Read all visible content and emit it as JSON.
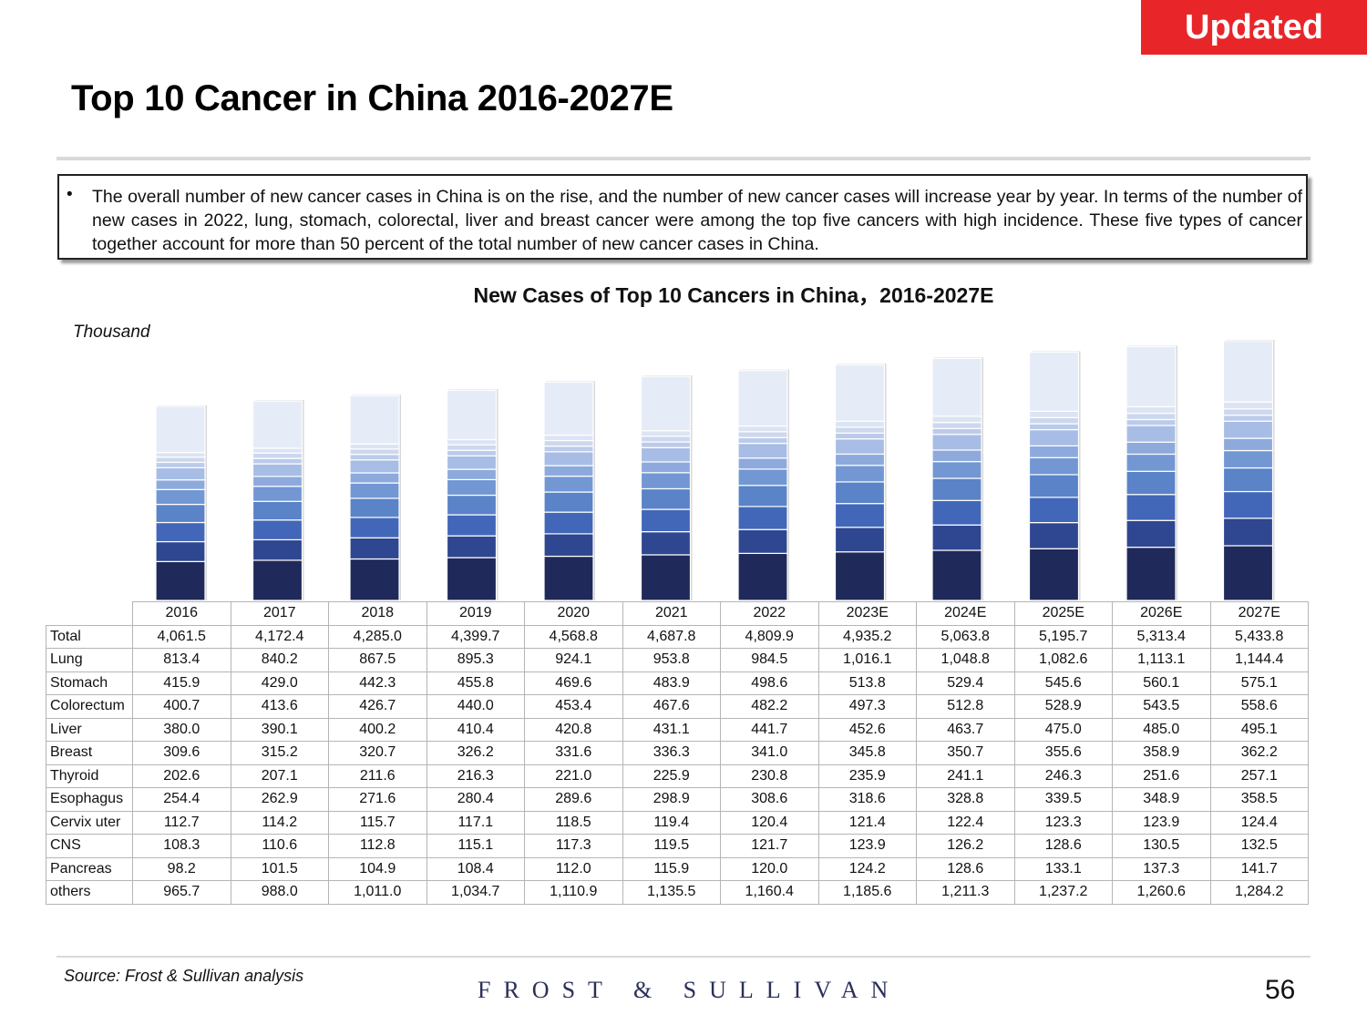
{
  "badge": "Updated",
  "title": "Top 10 Cancer in China 2016-2027E",
  "summary": "The overall number of new cancer cases in China is on the rise, and the number of new cancer cases will increase year by year. In terms of the number of new cases in 2022, lung, stomach, colorectal, liver and breast cancer were among the top five cancers with high incidence. These five types of cancer together account for more than 50 percent of the total number of new cancer cases in China.",
  "bullet": "•",
  "source": "Source: Frost & Sullivan analysis",
  "logo": "FROST & SULLIVAN",
  "page_number": "56",
  "colors": {
    "badge": "#e8262a",
    "series": [
      "#1f2a5a",
      "#2f4690",
      "#4267b8",
      "#5a83c8",
      "#7297d3",
      "#8eaadc",
      "#a8bde5",
      "#bccbea",
      "#cdd8ef",
      "#dce4f4",
      "#e6ecf7"
    ]
  },
  "chart_data": {
    "type": "bar",
    "stacked": true,
    "title": "New Cases of Top 10 Cancers in China，2016-2027E",
    "ylabel": "Thousand",
    "categories": [
      "2016",
      "2017",
      "2018",
      "2019",
      "2020",
      "2021",
      "2022",
      "2023E",
      "2024E",
      "2025E",
      "2026E",
      "2027E"
    ],
    "totals": [
      "4,061.5",
      "4,172.4",
      "4,285.0",
      "4,399.7",
      "4,568.8",
      "4,687.8",
      "4,809.9",
      "4,935.2",
      "5,063.8",
      "5,195.7",
      "5,313.4",
      "5,433.8"
    ],
    "series": [
      {
        "name": "Lung",
        "values": [
          "813.4",
          "840.2",
          "867.5",
          "895.3",
          "924.1",
          "953.8",
          "984.5",
          "1,016.1",
          "1,048.8",
          "1,082.6",
          "1,113.1",
          "1,144.4"
        ]
      },
      {
        "name": "Stomach",
        "values": [
          "415.9",
          "429.0",
          "442.3",
          "455.8",
          "469.6",
          "483.9",
          "498.6",
          "513.8",
          "529.4",
          "545.6",
          "560.1",
          "575.1"
        ]
      },
      {
        "name": "Colorectum",
        "values": [
          "400.7",
          "413.6",
          "426.7",
          "440.0",
          "453.4",
          "467.6",
          "482.2",
          "497.3",
          "512.8",
          "528.9",
          "543.5",
          "558.6"
        ]
      },
      {
        "name": "Liver",
        "values": [
          "380.0",
          "390.1",
          "400.2",
          "410.4",
          "420.8",
          "431.1",
          "441.7",
          "452.6",
          "463.7",
          "475.0",
          "485.0",
          "495.1"
        ]
      },
      {
        "name": "Breast",
        "values": [
          "309.6",
          "315.2",
          "320.7",
          "326.2",
          "331.6",
          "336.3",
          "341.0",
          "345.8",
          "350.7",
          "355.6",
          "358.9",
          "362.2"
        ]
      },
      {
        "name": "Thyroid",
        "values": [
          "202.6",
          "207.1",
          "211.6",
          "216.3",
          "221.0",
          "225.9",
          "230.8",
          "235.9",
          "241.1",
          "246.3",
          "251.6",
          "257.1"
        ]
      },
      {
        "name": "Esophagus",
        "values": [
          "254.4",
          "262.9",
          "271.6",
          "280.4",
          "289.6",
          "298.9",
          "308.6",
          "318.6",
          "328.8",
          "339.5",
          "348.9",
          "358.5"
        ]
      },
      {
        "name": "Cervix uter",
        "values": [
          "112.7",
          "114.2",
          "115.7",
          "117.1",
          "118.5",
          "119.4",
          "120.4",
          "121.4",
          "122.4",
          "123.3",
          "123.9",
          "124.4"
        ]
      },
      {
        "name": "CNS",
        "values": [
          "108.3",
          "110.6",
          "112.8",
          "115.1",
          "117.3",
          "119.5",
          "121.7",
          "123.9",
          "126.2",
          "128.6",
          "130.5",
          "132.5"
        ]
      },
      {
        "name": "Pancreas",
        "values": [
          "98.2",
          "101.5",
          "104.9",
          "108.4",
          "112.0",
          "115.9",
          "120.0",
          "124.2",
          "128.6",
          "133.1",
          "137.3",
          "141.7"
        ]
      },
      {
        "name": "others",
        "values": [
          "965.7",
          "988.0",
          "1,011.0",
          "1,034.7",
          "1,110.9",
          "1,135.5",
          "1,160.4",
          "1,185.6",
          "1,211.3",
          "1,237.2",
          "1,260.6",
          "1,284.2"
        ]
      }
    ],
    "table_row_label_total": "Total"
  }
}
